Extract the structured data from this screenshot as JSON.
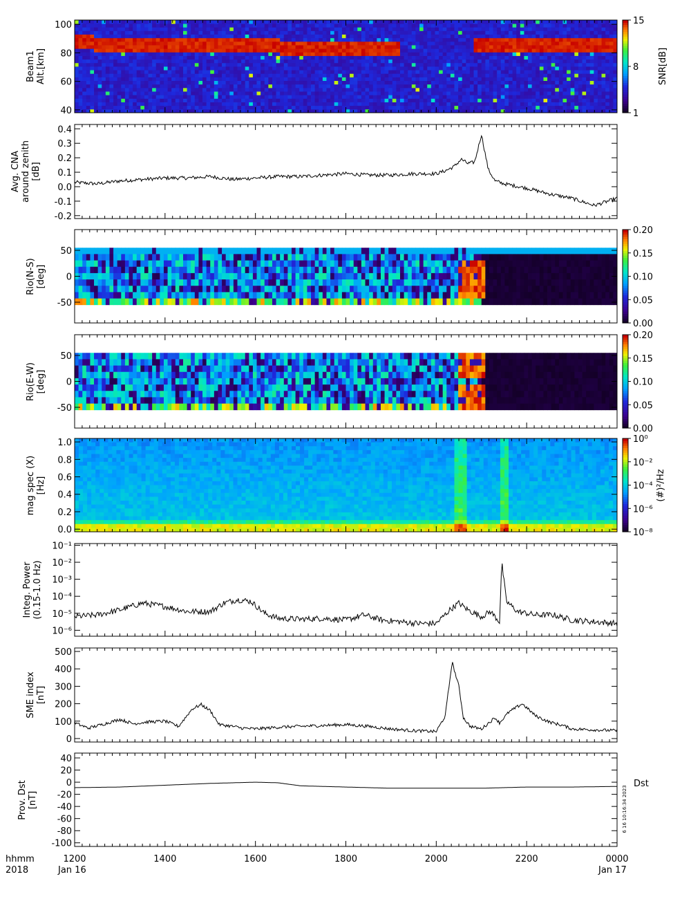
{
  "chart_data": [
    {
      "id": "radar",
      "type": "heatmap",
      "ylabel": [
        "Beam1",
        "Alt.[km]"
      ],
      "yticks": [
        40,
        60,
        80,
        100
      ],
      "ylim": [
        38,
        103
      ],
      "colorbar": {
        "label": "SNR[dB]",
        "ticks": [
          "1",
          "8",
          "15"
        ],
        "range": [
          1,
          15
        ]
      },
      "layer_km": [
        82,
        92
      ],
      "background": "#2a2a95"
    },
    {
      "id": "cna",
      "type": "line",
      "ylabel": [
        "Avg. CNA",
        "around zenith",
        "[dB]"
      ],
      "yticks": [
        "-0.2",
        "-0.1",
        "0.0",
        "0.1",
        "0.2",
        "0.3",
        "0.4"
      ],
      "ytick_values": [
        -0.2,
        -0.1,
        0.0,
        0.1,
        0.2,
        0.3,
        0.4
      ],
      "ylim": [
        -0.22,
        0.43
      ],
      "x_hours": [
        12,
        12.5,
        13,
        13.5,
        14,
        14.5,
        15,
        15.5,
        16,
        16.5,
        17,
        17.5,
        18,
        18.5,
        19,
        19.5,
        20,
        20.2,
        20.4,
        20.55,
        20.7,
        20.85,
        21.0,
        21.15,
        21.3,
        21.5,
        22,
        22.5,
        23,
        23.5,
        24
      ],
      "values": [
        0.03,
        0.02,
        0.04,
        0.05,
        0.06,
        0.06,
        0.07,
        0.05,
        0.06,
        0.07,
        0.07,
        0.08,
        0.09,
        0.08,
        0.08,
        0.09,
        0.09,
        0.11,
        0.14,
        0.19,
        0.16,
        0.17,
        0.36,
        0.12,
        0.04,
        0.02,
        -0.01,
        -0.05,
        -0.08,
        -0.13,
        -0.08
      ]
    },
    {
      "id": "rio_ns",
      "type": "heatmap",
      "ylabel": [
        "Rio(N-S)",
        "[deg]"
      ],
      "yticks": [
        -50,
        0,
        50
      ],
      "ylim": [
        -90,
        90
      ],
      "colorbar": {
        "ticks": [
          "0.00",
          "0.05",
          "0.10",
          "0.15",
          "0.20"
        ],
        "range": [
          0,
          0.22
        ]
      }
    },
    {
      "id": "rio_ew",
      "type": "heatmap",
      "ylabel": [
        "Rio(E-W)",
        "[deg]"
      ],
      "yticks": [
        -50,
        0,
        50
      ],
      "ylim": [
        -90,
        90
      ],
      "colorbar": {
        "ticks": [
          "0.00",
          "0.05",
          "0.10",
          "0.15",
          "0.20"
        ],
        "range": [
          0,
          0.22
        ]
      }
    },
    {
      "id": "magspec",
      "type": "heatmap",
      "ylabel": [
        "mag spec (X)",
        "[Hz]"
      ],
      "yticks": [
        "0.0",
        "0.2",
        "0.4",
        "0.6",
        "0.8",
        "1.0"
      ],
      "ytick_values": [
        0,
        0.2,
        0.4,
        0.6,
        0.8,
        1.0
      ],
      "ylim": [
        -0.03,
        1.04
      ],
      "colorbar": {
        "label": "(#)²/Hz",
        "ticks": [
          "10⁰",
          "10⁻²",
          "10⁻⁴",
          "10⁻⁶",
          "10⁻⁸"
        ],
        "range": [
          -9,
          0.5
        ]
      }
    },
    {
      "id": "integpower",
      "type": "line",
      "ylabel": [
        "Integ. Power",
        "(0.15-1.0 Hz)"
      ],
      "yticks": [
        "10⁻⁶",
        "10⁻⁵",
        "10⁻⁴",
        "10⁻³",
        "10⁻²",
        "10⁻¹"
      ],
      "ytick_values": [
        -6,
        -5,
        -4,
        -3,
        -2,
        -1
      ],
      "ylim": [
        -6.35,
        -0.9
      ],
      "log_scale": true,
      "x_hours": [
        12,
        12.5,
        13,
        13.5,
        14,
        14.5,
        15,
        15.3,
        15.6,
        15.9,
        16.2,
        16.5,
        17,
        17.5,
        18,
        18.4,
        18.8,
        19.2,
        19.6,
        20,
        20.3,
        20.5,
        20.7,
        21,
        21.2,
        21.4,
        21.45,
        21.55,
        21.8,
        22.2,
        22.6,
        23,
        23.5,
        24
      ],
      "values": [
        -5.2,
        -5.1,
        -4.8,
        -4.4,
        -4.6,
        -4.9,
        -4.9,
        -4.4,
        -4.2,
        -4.3,
        -5.0,
        -5.3,
        -5.35,
        -5.3,
        -5.4,
        -5.1,
        -5.4,
        -5.5,
        -5.6,
        -5.6,
        -4.8,
        -4.4,
        -4.8,
        -5.2,
        -4.9,
        -5.5,
        -2.0,
        -4.3,
        -4.9,
        -5.1,
        -5.1,
        -5.4,
        -5.5,
        -5.6
      ]
    },
    {
      "id": "sme",
      "type": "line",
      "ylabel": [
        "SME index",
        "[nT]"
      ],
      "yticks": [
        "0",
        "100",
        "200",
        "300",
        "400",
        "500"
      ],
      "ytick_values": [
        0,
        100,
        200,
        300,
        400,
        500
      ],
      "ylim": [
        -20,
        520
      ],
      "x_hours": [
        12,
        12.3,
        12.6,
        13,
        13.3,
        13.6,
        14,
        14.3,
        14.6,
        14.8,
        15,
        15.2,
        15.5,
        15.7,
        16,
        16.5,
        17,
        17.5,
        18,
        18.5,
        19,
        19.5,
        20,
        20.2,
        20.35,
        20.5,
        20.6,
        20.75,
        21,
        21.3,
        21.4,
        21.6,
        21.9,
        22.2,
        22.5,
        22.8,
        23,
        23.5,
        24
      ],
      "values": [
        90,
        60,
        80,
        110,
        85,
        95,
        100,
        70,
        170,
        195,
        160,
        80,
        70,
        60,
        55,
        65,
        70,
        75,
        80,
        70,
        55,
        45,
        40,
        130,
        440,
        300,
        120,
        70,
        55,
        120,
        90,
        150,
        200,
        130,
        95,
        75,
        55,
        50,
        45
      ]
    },
    {
      "id": "dst",
      "type": "line",
      "ylabel": [
        "Prov. Dst",
        "[nT]"
      ],
      "yticks": [
        "-100",
        "-80",
        "-60",
        "-40",
        "-20",
        "0",
        "20",
        "40"
      ],
      "ytick_values": [
        -100,
        -80,
        -60,
        -40,
        -20,
        0,
        20,
        40
      ],
      "ylim": [
        -106,
        48
      ],
      "right_label": "Dst",
      "stamp": "6 16 10:16:34 2023",
      "x_hours": [
        12,
        13,
        14,
        15,
        16,
        16.5,
        17,
        18,
        19,
        20,
        21,
        22,
        23,
        24
      ],
      "values": [
        -9,
        -8,
        -5,
        -2,
        0,
        -1,
        -6,
        -8,
        -10,
        -10,
        -10,
        -8,
        -8,
        -7
      ]
    }
  ],
  "time_axis": {
    "xlim": [
      12,
      24
    ],
    "ticks": [
      "1200",
      "1400",
      "1600",
      "1800",
      "2000",
      "2200",
      "0000"
    ],
    "tick_hours": [
      12,
      14,
      16,
      18,
      20,
      22,
      24
    ],
    "left_top": "hhmm",
    "left_bottom": "2018",
    "start_date": "Jan 16",
    "end_date": "Jan 17"
  }
}
